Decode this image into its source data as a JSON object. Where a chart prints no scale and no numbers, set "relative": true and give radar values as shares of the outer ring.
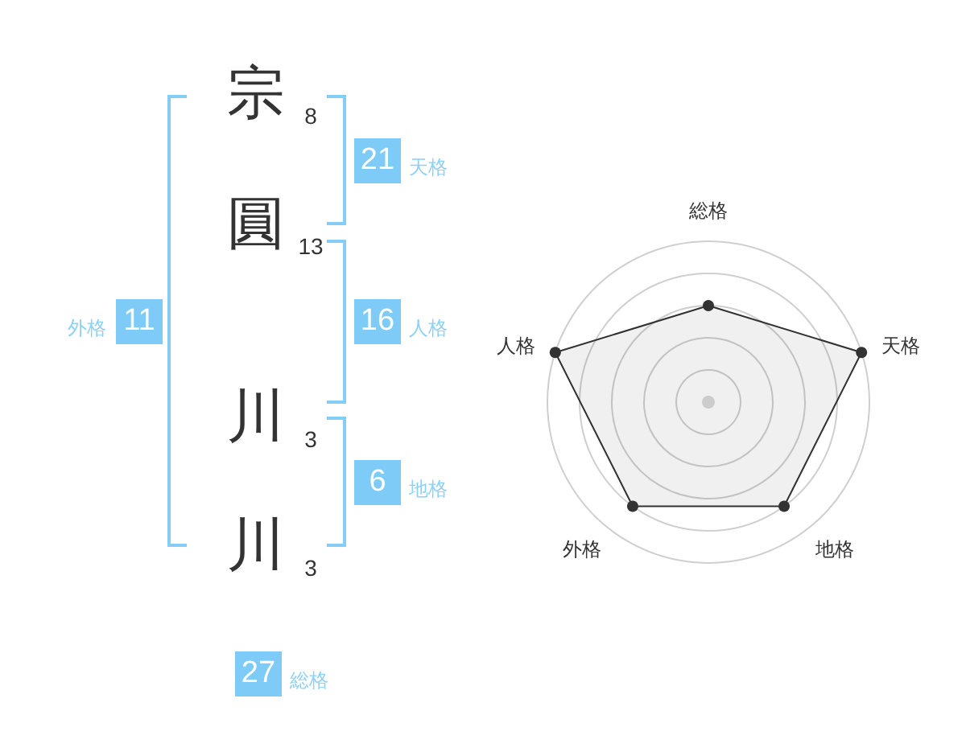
{
  "chart_data": [
    {
      "type": "other",
      "categories": [
        "宗",
        "圓",
        "川",
        "川"
      ],
      "values": [
        8,
        13,
        3,
        3
      ],
      "data_labels": true
    },
    {
      "type": "other",
      "categories": [
        "天格",
        "人格",
        "地格",
        "外格",
        "総格"
      ],
      "values": [
        21,
        16,
        6,
        11,
        27
      ],
      "data_labels": true
    },
    {
      "type": "radar",
      "categories": [
        "総格",
        "天格",
        "地格",
        "外格",
        "人格"
      ],
      "relative": true,
      "grid": true,
      "marker": "circle",
      "series": [
        {
          "color": "#333333",
          "values": [
            0.6,
            1,
            0.8,
            0.8,
            1
          ]
        }
      ]
    }
  ]
}
